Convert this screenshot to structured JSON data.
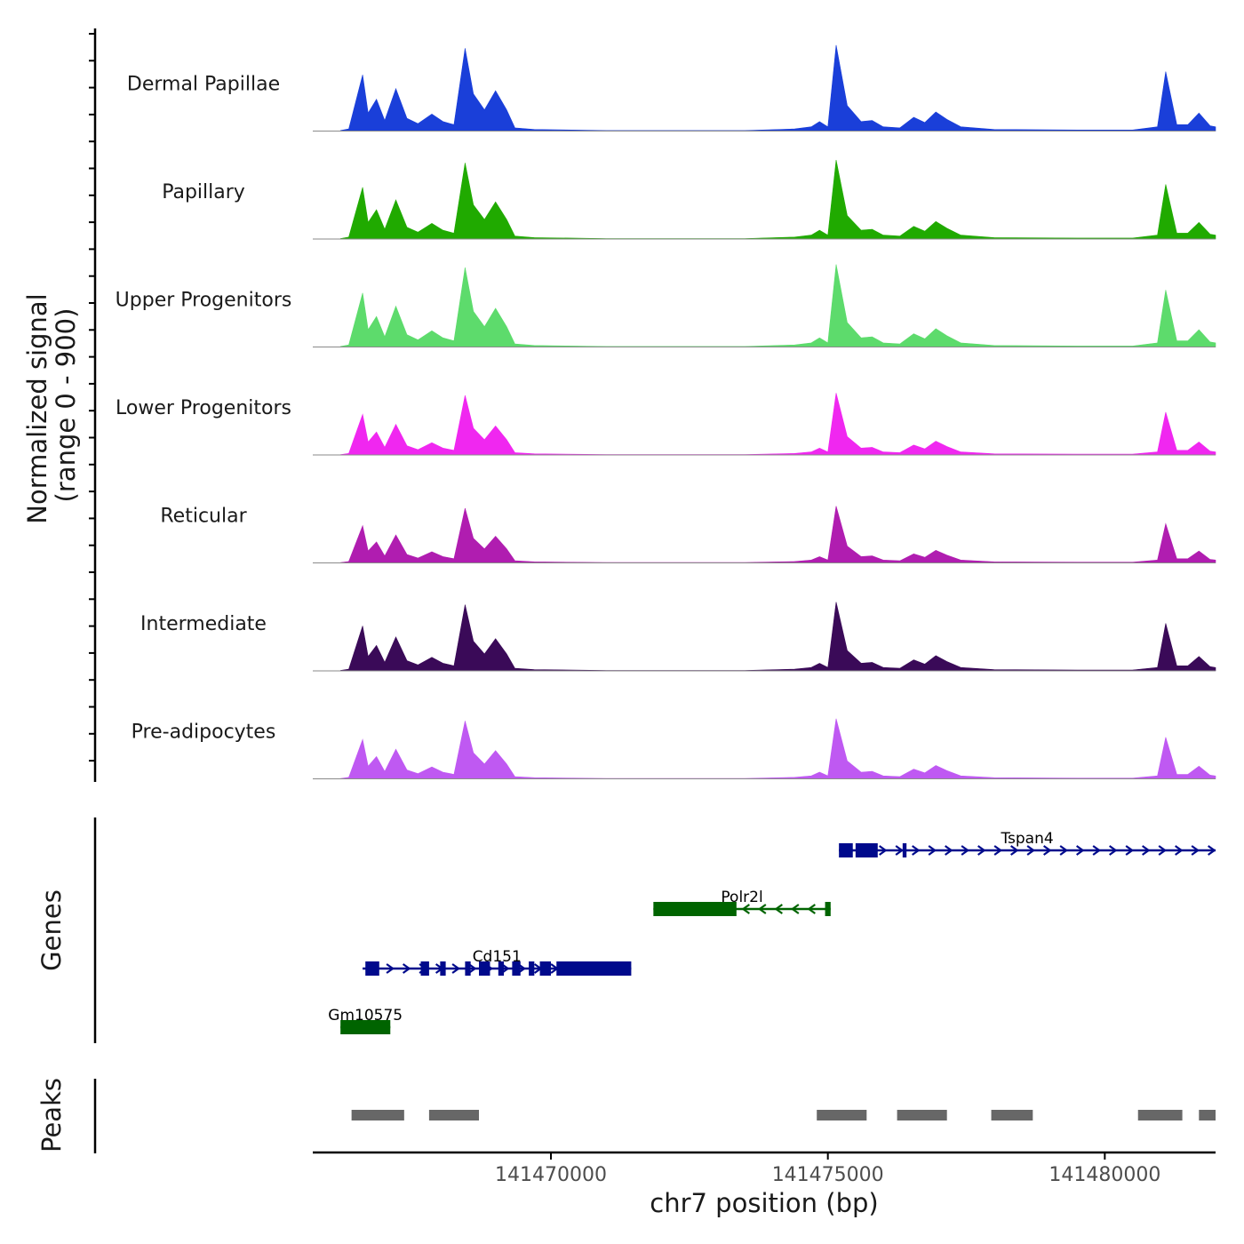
{
  "chart_data": {
    "type": "area",
    "title": "",
    "region": {
      "chromosome": "chr7",
      "start": 141465700,
      "end": 141482000
    },
    "ylabel_line1": "Normalized signal",
    "ylabel_line2": "(range 0 - 900)",
    "ylim": [
      0,
      900
    ],
    "xlabel": "chr7 position (bp)",
    "xticks": [
      141470000,
      141475000,
      141480000
    ],
    "xtick_labels": [
      "141470000",
      "141475000",
      "141480000"
    ],
    "peak_shape": [
      [
        141466200,
        5
      ],
      [
        141466350,
        20
      ],
      [
        141466600,
        530
      ],
      [
        141466700,
        170
      ],
      [
        141466850,
        300
      ],
      [
        141467000,
        100
      ],
      [
        141467200,
        400
      ],
      [
        141467400,
        120
      ],
      [
        141467600,
        70
      ],
      [
        141467850,
        160
      ],
      [
        141468050,
        90
      ],
      [
        141468250,
        60
      ],
      [
        141468450,
        780
      ],
      [
        141468600,
        350
      ],
      [
        141468800,
        200
      ],
      [
        141469000,
        380
      ],
      [
        141469200,
        200
      ],
      [
        141469350,
        30
      ],
      [
        141469700,
        15
      ],
      [
        141471000,
        5
      ],
      [
        141473500,
        5
      ],
      [
        141474400,
        20
      ],
      [
        141474700,
        40
      ],
      [
        141474850,
        90
      ],
      [
        141475000,
        40
      ],
      [
        141475150,
        810
      ],
      [
        141475350,
        240
      ],
      [
        141475600,
        90
      ],
      [
        141475800,
        100
      ],
      [
        141476000,
        40
      ],
      [
        141476300,
        30
      ],
      [
        141476550,
        130
      ],
      [
        141476750,
        80
      ],
      [
        141476950,
        180
      ],
      [
        141477150,
        110
      ],
      [
        141477400,
        40
      ],
      [
        141478000,
        15
      ],
      [
        141479500,
        10
      ],
      [
        141480500,
        10
      ],
      [
        141480950,
        40
      ],
      [
        141481100,
        560
      ],
      [
        141481300,
        60
      ],
      [
        141481500,
        60
      ],
      [
        141481700,
        170
      ],
      [
        141481900,
        50
      ],
      [
        141482000,
        40
      ]
    ],
    "series": [
      {
        "name": "Dermal Papillae",
        "color": "#1a3fd9",
        "scale": 1.0
      },
      {
        "name": "Papillary",
        "color": "#20aa00",
        "scale": 0.92
      },
      {
        "name": "Upper Progenitors",
        "color": "#5ddb6c",
        "scale": 0.96
      },
      {
        "name": "Lower Progenitors",
        "color": "#f027f0",
        "scale": 0.72
      },
      {
        "name": "Reticular",
        "color": "#b01db0",
        "scale": 0.66
      },
      {
        "name": "Intermediate",
        "color": "#3a0a58",
        "scale": 0.8
      },
      {
        "name": "Pre-adipocytes",
        "color": "#bf59f2",
        "scale": 0.7
      }
    ],
    "genes_label": "Genes",
    "genes": [
      {
        "name": "Tspan4",
        "strand": "+",
        "color": "#000a8c",
        "start": 141475200,
        "end": 141482000,
        "exons": [
          [
            141475200,
            141475450
          ],
          [
            141475500,
            141475900
          ],
          [
            141476350,
            141476420
          ]
        ]
      },
      {
        "name": "Polr2l",
        "strand": "-",
        "color": "#006400",
        "start": 141471850,
        "end": 141475050,
        "exons": [
          [
            141471850,
            141473350
          ],
          [
            141474950,
            141475050
          ]
        ]
      },
      {
        "name": "Cd151",
        "strand": "+",
        "color": "#000a8c",
        "start": 141466600,
        "end": 141471450,
        "exons": [
          [
            141466650,
            141466900
          ],
          [
            141467650,
            141467800
          ],
          [
            141468000,
            141468100
          ],
          [
            141468450,
            141468550
          ],
          [
            141468700,
            141468900
          ],
          [
            141469050,
            141469150
          ],
          [
            141469300,
            141469450
          ],
          [
            141469600,
            141469700
          ],
          [
            141469800,
            141470000
          ],
          [
            141470100,
            141471450
          ]
        ]
      },
      {
        "name": "Gm10575",
        "strand": "-",
        "color": "#006400",
        "start": 141466200,
        "end": 141467100,
        "exons": [
          [
            141466200,
            141467100
          ]
        ]
      }
    ],
    "peaks_label": "Peaks",
    "peaks": [
      [
        141466400,
        141467350
      ],
      [
        141467800,
        141468700
      ],
      [
        141474800,
        141475700
      ],
      [
        141476250,
        141477150
      ],
      [
        141477950,
        141478700
      ],
      [
        141480600,
        141481400
      ],
      [
        141481700,
        141482000
      ]
    ]
  }
}
